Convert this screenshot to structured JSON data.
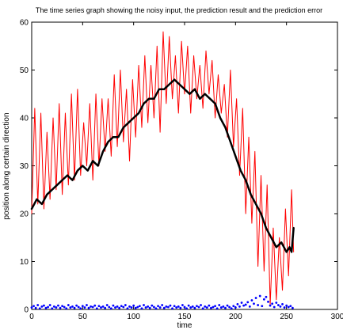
{
  "chart_data": {
    "type": "line",
    "title": "The time series graph showing the noisy input, the prediction result and the prediction error",
    "xlabel": "time",
    "ylabel": "position along certain direction",
    "xlim": [
      0,
      300
    ],
    "ylim": [
      0,
      60
    ],
    "xticks": [
      0,
      50,
      100,
      150,
      200,
      250,
      300
    ],
    "yticks": [
      0,
      10,
      20,
      30,
      40,
      50,
      60
    ],
    "grid": false,
    "series": [
      {
        "key": "noisy",
        "color": "#ff0000",
        "style": "line",
        "width": 1,
        "x": [
          0,
          3,
          6,
          9,
          12,
          15,
          18,
          21,
          24,
          27,
          30,
          33,
          36,
          39,
          42,
          45,
          48,
          51,
          54,
          57,
          60,
          63,
          66,
          69,
          72,
          75,
          78,
          81,
          84,
          87,
          90,
          93,
          96,
          99,
          102,
          105,
          108,
          111,
          114,
          117,
          120,
          123,
          126,
          129,
          132,
          135,
          138,
          141,
          144,
          147,
          150,
          153,
          156,
          159,
          162,
          165,
          168,
          171,
          174,
          177,
          180,
          183,
          186,
          189,
          192,
          195,
          198,
          201,
          204,
          207,
          210,
          213,
          216,
          219,
          222,
          225,
          228,
          231,
          234,
          237,
          240,
          243,
          246,
          249,
          252,
          255,
          257
        ],
        "y": [
          20,
          42,
          22,
          41,
          21,
          37,
          23,
          40,
          25,
          43,
          24,
          41,
          26,
          45,
          27,
          46,
          28,
          39,
          30,
          43,
          27,
          45,
          30,
          44,
          33,
          44,
          32,
          49,
          34,
          50,
          35,
          46,
          31,
          48,
          36,
          51,
          38,
          53,
          39,
          51,
          40,
          55,
          37,
          58,
          43,
          57,
          44,
          53,
          41,
          56,
          45,
          55,
          41,
          53,
          44,
          51,
          42,
          54,
          45,
          52,
          40,
          49,
          41,
          47,
          36,
          50,
          34,
          44,
          28,
          42,
          20,
          36,
          18,
          33,
          9,
          28,
          8,
          26,
          1,
          17,
          2,
          15,
          4,
          21,
          7,
          25,
          12
        ],
        "dot_size": 0
      },
      {
        "key": "prediction",
        "color": "#000000",
        "style": "line",
        "width": 2.5,
        "x": [
          0,
          5,
          10,
          15,
          20,
          25,
          30,
          35,
          40,
          45,
          50,
          55,
          60,
          65,
          70,
          75,
          80,
          85,
          90,
          95,
          100,
          105,
          110,
          115,
          120,
          125,
          130,
          135,
          140,
          145,
          150,
          155,
          160,
          165,
          170,
          175,
          180,
          185,
          190,
          195,
          200,
          205,
          210,
          215,
          220,
          225,
          230,
          235,
          240,
          245,
          250,
          253,
          255,
          257
        ],
        "y": [
          21,
          23,
          22,
          24,
          25,
          26,
          27,
          28,
          27,
          29,
          30,
          29,
          31,
          30,
          33,
          35,
          36,
          36,
          38,
          39,
          40,
          41,
          43,
          44,
          44,
          46,
          46,
          47,
          48,
          47,
          46,
          45,
          46,
          44,
          45,
          44,
          43,
          40,
          38,
          35,
          32,
          29,
          27,
          24,
          22,
          20,
          17,
          15,
          13,
          14,
          12,
          13,
          12,
          17
        ],
        "dot_size": 0
      },
      {
        "key": "error",
        "color": "#0000ff",
        "style": "dots",
        "width": 0,
        "x": [
          0,
          2,
          4,
          6,
          8,
          10,
          12,
          14,
          16,
          18,
          20,
          22,
          24,
          26,
          28,
          30,
          32,
          34,
          36,
          38,
          40,
          42,
          44,
          46,
          48,
          50,
          52,
          54,
          56,
          58,
          60,
          62,
          64,
          66,
          68,
          70,
          72,
          74,
          76,
          78,
          80,
          82,
          84,
          86,
          88,
          90,
          92,
          94,
          96,
          98,
          100,
          102,
          104,
          106,
          108,
          110,
          112,
          114,
          116,
          118,
          120,
          122,
          124,
          126,
          128,
          130,
          132,
          134,
          136,
          138,
          140,
          142,
          144,
          146,
          148,
          150,
          152,
          154,
          156,
          158,
          160,
          162,
          164,
          166,
          168,
          170,
          172,
          174,
          176,
          178,
          180,
          182,
          184,
          186,
          188,
          190,
          192,
          194,
          196,
          198,
          200,
          202,
          204,
          206,
          208,
          210,
          212,
          214,
          216,
          218,
          220,
          222,
          224,
          226,
          228,
          230,
          232,
          234,
          236,
          238,
          240,
          242,
          244,
          246,
          248,
          250,
          252,
          254,
          256
        ],
        "y": [
          0.4,
          0.7,
          0.3,
          0.9,
          0.2,
          0.6,
          0.8,
          0.3,
          0.5,
          0.9,
          0.2,
          0.6,
          0.4,
          0.8,
          0.3,
          0.7,
          0.5,
          0.2,
          0.9,
          0.4,
          0.6,
          0.3,
          0.8,
          0.5,
          0.2,
          0.7,
          0.4,
          0.9,
          0.3,
          0.6,
          0.5,
          0.8,
          0.2,
          0.7,
          0.4,
          0.6,
          0.3,
          0.9,
          0.5,
          0.2,
          0.8,
          0.4,
          0.6,
          0.3,
          0.7,
          0.5,
          0.9,
          0.2,
          0.6,
          0.4,
          0.8,
          0.3,
          0.5,
          0.7,
          0.2,
          0.9,
          0.4,
          0.6,
          0.3,
          0.8,
          0.5,
          0.2,
          0.7,
          0.4,
          0.9,
          0.3,
          0.6,
          0.5,
          0.8,
          0.2,
          0.7,
          0.4,
          0.6,
          0.3,
          0.9,
          0.5,
          0.2,
          0.8,
          0.4,
          0.6,
          0.3,
          0.7,
          0.5,
          0.9,
          0.2,
          0.6,
          0.4,
          0.8,
          0.3,
          0.5,
          0.7,
          0.2,
          0.9,
          0.4,
          0.6,
          0.3,
          0.8,
          0.5,
          0.2,
          0.7,
          0.4,
          1.1,
          0.6,
          1.4,
          0.8,
          1.0,
          1.5,
          0.6,
          1.9,
          1.2,
          2.4,
          0.9,
          2.8,
          0.7,
          2.1,
          2.6,
          1.6,
          0.8,
          1.2,
          0.5,
          1.4,
          0.9,
          0.6,
          1.1,
          0.4,
          0.8,
          0.5,
          0.7,
          0.3
        ],
        "dot_size": 1.4
      }
    ]
  }
}
